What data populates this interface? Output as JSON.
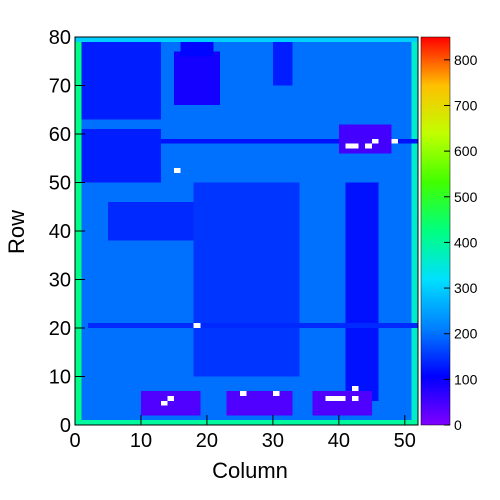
{
  "chart_data": {
    "type": "heatmap",
    "x_label": "Column",
    "y_label": "Row",
    "xlim": [
      0,
      52
    ],
    "ylim": [
      0,
      80
    ],
    "xticks": [
      0,
      10,
      20,
      30,
      40,
      50
    ],
    "yticks": [
      0,
      10,
      20,
      30,
      40,
      50,
      60,
      70,
      80
    ],
    "zlim": [
      0,
      850
    ],
    "zticks": [
      0,
      100,
      200,
      300,
      400,
      500,
      600,
      700,
      800
    ],
    "colormap": [
      "#8000ff",
      "#0000ff",
      "#0080ff",
      "#00e0ff",
      "#00ff80",
      "#40ff00",
      "#c0ff00",
      "#ffc000",
      "#ff0000"
    ],
    "regions": [
      {
        "x": [
          0,
          52
        ],
        "y": [
          0,
          80
        ],
        "value": 200
      },
      {
        "x": [
          0,
          1
        ],
        "y": [
          0,
          80
        ],
        "value": 420
      },
      {
        "x": [
          51,
          52
        ],
        "y": [
          0,
          80
        ],
        "value": 360
      },
      {
        "x": [
          0,
          52
        ],
        "y": [
          79,
          80
        ],
        "value": 300
      },
      {
        "x": [
          0,
          52
        ],
        "y": [
          0,
          1
        ],
        "value": 400
      },
      {
        "x": [
          1,
          13
        ],
        "y": [
          63,
          79
        ],
        "value": 130
      },
      {
        "x": [
          1,
          13
        ],
        "y": [
          50,
          61
        ],
        "value": 130
      },
      {
        "x": [
          13,
          52
        ],
        "y": [
          58,
          59
        ],
        "value": 120
      },
      {
        "x": [
          5,
          34
        ],
        "y": [
          38,
          46
        ],
        "value": 140
      },
      {
        "x": [
          18,
          34
        ],
        "y": [
          10,
          50
        ],
        "value": 150
      },
      {
        "x": [
          41,
          46
        ],
        "y": [
          5,
          50
        ],
        "value": 120
      },
      {
        "x": [
          2,
          52
        ],
        "y": [
          20,
          21
        ],
        "value": 140
      },
      {
        "x": [
          15,
          22
        ],
        "y": [
          66,
          77
        ],
        "value": 90
      },
      {
        "x": [
          16,
          21
        ],
        "y": [
          76,
          79
        ],
        "value": 110
      },
      {
        "x": [
          30,
          33
        ],
        "y": [
          70,
          79
        ],
        "value": 130
      },
      {
        "x": [
          10,
          19
        ],
        "y": [
          2,
          7
        ],
        "value": 40
      },
      {
        "x": [
          23,
          33
        ],
        "y": [
          2,
          7
        ],
        "value": 40
      },
      {
        "x": [
          36,
          45
        ],
        "y": [
          2,
          7
        ],
        "value": 40
      },
      {
        "x": [
          40,
          48
        ],
        "y": [
          56,
          62
        ],
        "value": 50
      },
      {
        "x": [
          15,
          16
        ],
        "y": [
          52,
          53
        ],
        "value": 0
      },
      {
        "x": [
          18,
          19
        ],
        "y": [
          20,
          21
        ],
        "value": 0
      },
      {
        "x": [
          13,
          14
        ],
        "y": [
          4,
          5
        ],
        "value": 0
      },
      {
        "x": [
          14,
          15
        ],
        "y": [
          5,
          6
        ],
        "value": 0
      },
      {
        "x": [
          25,
          26
        ],
        "y": [
          6,
          7
        ],
        "value": 0
      },
      {
        "x": [
          30,
          31
        ],
        "y": [
          6,
          7
        ],
        "value": 0
      },
      {
        "x": [
          38,
          41
        ],
        "y": [
          5,
          6
        ],
        "value": 0
      },
      {
        "x": [
          42,
          43
        ],
        "y": [
          7,
          8
        ],
        "value": 0
      },
      {
        "x": [
          42,
          43
        ],
        "y": [
          5,
          6
        ],
        "value": 0
      },
      {
        "x": [
          41,
          43
        ],
        "y": [
          57,
          58
        ],
        "value": 0
      },
      {
        "x": [
          44,
          45
        ],
        "y": [
          57,
          58
        ],
        "value": 0
      },
      {
        "x": [
          45,
          46
        ],
        "y": [
          58,
          59
        ],
        "value": 0
      },
      {
        "x": [
          48,
          49
        ],
        "y": [
          58,
          59
        ],
        "value": 0
      }
    ]
  }
}
